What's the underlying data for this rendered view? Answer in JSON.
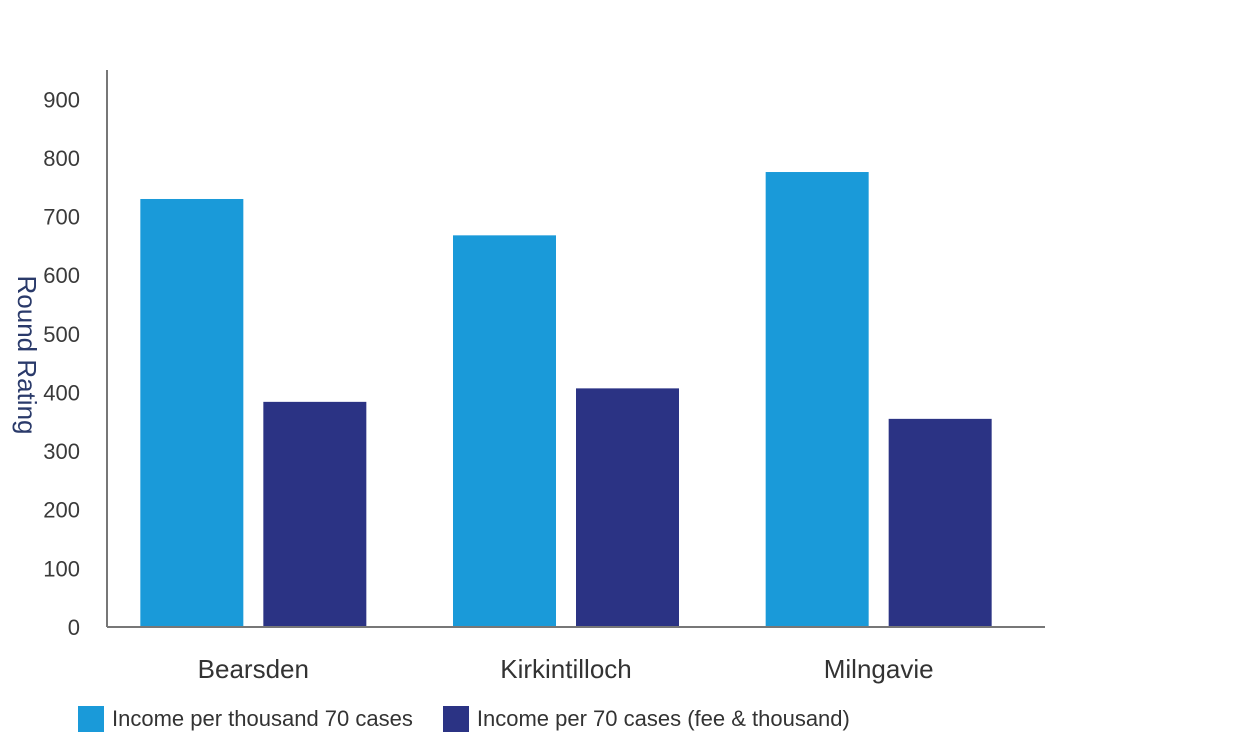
{
  "chart_data": {
    "type": "bar",
    "title": "",
    "xlabel": "",
    "ylabel": "Round Rating",
    "categories": [
      "Bearsden",
      "Kirkintilloch",
      "Milngavie"
    ],
    "series": [
      {
        "name": "Income per thousand 70 cases",
        "color": "#1a9ad9",
        "values": [
          730,
          668,
          776
        ]
      },
      {
        "name": "Income per 70 cases (fee & thousand)",
        "color": "#2b3384",
        "values": [
          384,
          407,
          355
        ]
      }
    ],
    "ylim": [
      0,
      950
    ],
    "yticks": [
      0,
      100,
      200,
      300,
      400,
      500,
      600,
      700,
      800,
      900
    ],
    "grid": false,
    "legend_position": "bottom-left"
  }
}
